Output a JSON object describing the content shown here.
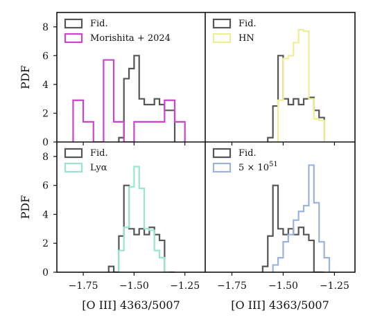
{
  "chart_data": [
    {
      "type": "histogram",
      "panel": "top-left",
      "xlabel": "",
      "ylabel": "PDF",
      "xlim": [
        -1.88,
        -1.15
      ],
      "ylim": [
        0,
        9
      ],
      "xticks": [
        -1.75,
        -1.5,
        -1.25
      ],
      "xtick_labels": [
        "",
        "",
        ""
      ],
      "yticks": [
        0,
        2,
        4,
        6,
        8
      ],
      "ytick_labels": [
        "0",
        "2",
        "4",
        "6",
        "8"
      ],
      "legend": "top-left",
      "series": [
        {
          "name": "Fid.",
          "color": "#555555",
          "bin_edges": [
            -1.575,
            -1.55,
            -1.525,
            -1.5,
            -1.475,
            -1.45,
            -1.425,
            -1.4,
            -1.375,
            -1.35,
            -1.325,
            -1.3
          ],
          "values": [
            0.3,
            4.4,
            5.1,
            6.0,
            3.0,
            2.6,
            2.6,
            3.0,
            2.6,
            2.2,
            2.2
          ]
        },
        {
          "name": "Morishita + 2024",
          "color": "#cc44cc",
          "bin_edges": [
            -1.8,
            -1.75,
            -1.7,
            -1.65,
            -1.6,
            -1.55,
            -1.5,
            -1.45,
            -1.4,
            -1.35,
            -1.3,
            -1.25
          ],
          "values": [
            2.9,
            1.4,
            0.0,
            5.7,
            1.4,
            0.0,
            1.4,
            1.4,
            1.4,
            2.9,
            1.4
          ]
        }
      ]
    },
    {
      "type": "histogram",
      "panel": "top-right",
      "xlabel": "",
      "ylabel": "",
      "xlim": [
        -1.88,
        -1.15
      ],
      "ylim": [
        0,
        9
      ],
      "xticks": [
        -1.75,
        -1.5,
        -1.25
      ],
      "xtick_labels": [
        "",
        "",
        ""
      ],
      "legend": "top-left",
      "series": [
        {
          "name": "Fid.",
          "color": "#555555",
          "bin_edges": [
            -1.575,
            -1.55,
            -1.525,
            -1.5,
            -1.475,
            -1.45,
            -1.425,
            -1.4,
            -1.375,
            -1.35,
            -1.325,
            -1.3
          ],
          "values": [
            0.3,
            2.5,
            6.0,
            3.0,
            2.6,
            3.0,
            2.6,
            3.0,
            3.1,
            2.2,
            1.7
          ]
        },
        {
          "name": "HN",
          "color": "#eeee99",
          "bin_edges": [
            -1.525,
            -1.5,
            -1.475,
            -1.45,
            -1.425,
            -1.4,
            -1.375,
            -1.35,
            -1.325,
            -1.3
          ],
          "values": [
            2.9,
            5.8,
            6.0,
            6.9,
            7.8,
            7.7,
            3.0,
            1.6,
            1.5
          ]
        }
      ]
    },
    {
      "type": "histogram",
      "panel": "bottom-left",
      "xlabel": "[O III] 4363/5007",
      "ylabel": "PDF",
      "xlim": [
        -1.88,
        -1.15
      ],
      "ylim": [
        0,
        9
      ],
      "xticks": [
        -1.75,
        -1.5,
        -1.25
      ],
      "xtick_labels": [
        "−1.75",
        "−1.50",
        "−1.25"
      ],
      "yticks": [
        0,
        2,
        4,
        6,
        8
      ],
      "ytick_labels": [
        "0",
        "2",
        "4",
        "6",
        "8"
      ],
      "legend": "top-left",
      "series": [
        {
          "name": "Fid.",
          "color": "#555555",
          "bin_edges": [
            -1.625,
            -1.6,
            -1.575,
            -1.55,
            -1.525,
            -1.5,
            -1.475,
            -1.45,
            -1.425,
            -1.4,
            -1.375,
            -1.35,
            -1.325,
            -1.3
          ],
          "values": [
            0.4,
            0.0,
            2.5,
            6.0,
            3.0,
            2.6,
            3.0,
            2.6,
            3.1,
            2.6,
            2.2,
            0.0,
            0.0
          ]
        },
        {
          "name": "Lyα",
          "color": "#99e6cc",
          "bin_edges": [
            -1.575,
            -1.55,
            -1.525,
            -1.5,
            -1.475,
            -1.45,
            -1.425,
            -1.4,
            -1.375,
            -1.35,
            -1.325
          ],
          "values": [
            1.5,
            3.1,
            5.9,
            7.3,
            5.8,
            3.0,
            2.9,
            1.5,
            1.0,
            0.0
          ]
        }
      ]
    },
    {
      "type": "histogram",
      "panel": "bottom-right",
      "xlabel": "[O III] 4363/5007",
      "ylabel": "",
      "xlim": [
        -1.88,
        -1.15
      ],
      "ylim": [
        0,
        9
      ],
      "xticks": [
        -1.75,
        -1.5,
        -1.25
      ],
      "xtick_labels": [
        "−1.75",
        "−1.50",
        "−1.25"
      ],
      "legend": "top-left",
      "series": [
        {
          "name": "Fid.",
          "color": "#555555",
          "bin_edges": [
            -1.6,
            -1.575,
            -1.55,
            -1.525,
            -1.5,
            -1.475,
            -1.45,
            -1.425,
            -1.4,
            -1.375,
            -1.35,
            -1.325,
            -1.3
          ],
          "values": [
            0.4,
            2.5,
            6.0,
            3.0,
            2.6,
            3.0,
            2.6,
            3.1,
            2.6,
            2.2,
            0.0,
            0.0
          ]
        },
        {
          "name": "5 × 10^51",
          "color": "#99b3dd",
          "bin_edges": [
            -1.55,
            -1.525,
            -1.5,
            -1.475,
            -1.45,
            -1.425,
            -1.4,
            -1.375,
            -1.35,
            -1.325,
            -1.3,
            -1.275,
            -1.25
          ],
          "values": [
            0.5,
            1.0,
            2.1,
            2.6,
            3.6,
            4.2,
            4.6,
            7.4,
            4.8,
            2.1,
            1.0,
            0.0
          ]
        }
      ]
    }
  ]
}
